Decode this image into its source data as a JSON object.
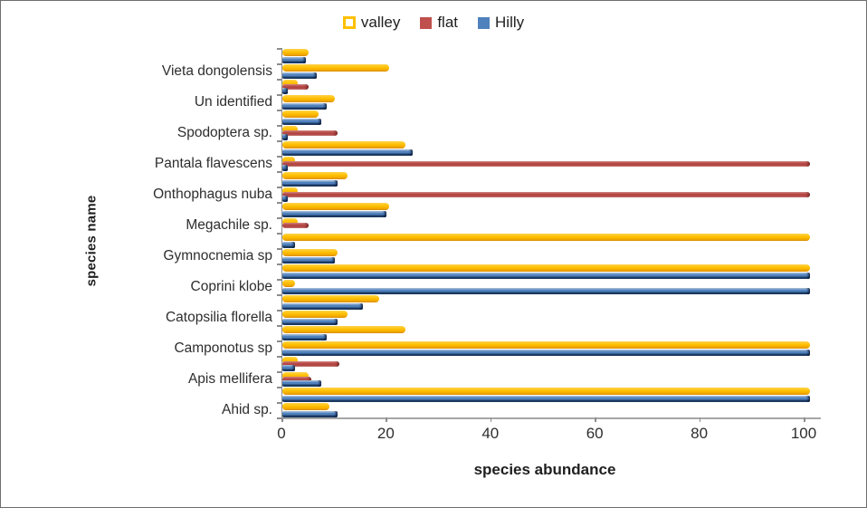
{
  "legend": {
    "items": [
      {
        "label": "valley",
        "color": "#FFC000",
        "marker": "hollow-square"
      },
      {
        "label": "flat",
        "color": "#C0504D",
        "marker": "square"
      },
      {
        "label": "Hilly",
        "color": "#4F81BD",
        "marker": "square"
      }
    ]
  },
  "axes": {
    "x_title": "species abundance",
    "y_title": "species name",
    "x_tick_labels": [
      "0",
      "20",
      "40",
      "60",
      "80",
      "100"
    ]
  },
  "chart_data": {
    "type": "bar",
    "orientation": "horizontal",
    "title": "",
    "xlabel": "species abundance",
    "ylabel": "species name",
    "xlim": [
      0,
      110
    ],
    "xticks": [
      0,
      20,
      40,
      60,
      80,
      100
    ],
    "gridlines": false,
    "legend_position": "top-center",
    "series_names": [
      "valley",
      "flat",
      "Hilly"
    ],
    "series_colors": {
      "valley": "#FFC000",
      "flat": "#C0504D",
      "Hilly": "#4F81BD"
    },
    "categories_labeled": [
      "Vieta dongolensis",
      "Un identified",
      "Spodoptera sp.",
      "Pantala flavescens",
      "Onthophagus nuba",
      "Megachile sp.",
      "Gymnocnemia sp",
      "Coprini klobe",
      "Catopsilia florella",
      "Camponotus sp",
      "Apis mellifera",
      "Ahid sp."
    ],
    "rows_order": "top-to-bottom",
    "rows": [
      {
        "label": "",
        "valley": 5,
        "flat": 0,
        "hilly": 4.5
      },
      {
        "label": "Vieta dongolensis",
        "valley": 20.5,
        "flat": 0,
        "hilly": 6.5
      },
      {
        "label": "",
        "valley": 3,
        "flat": 5,
        "hilly": 1
      },
      {
        "label": "Un identified",
        "valley": 10,
        "flat": 0,
        "hilly": 8.5
      },
      {
        "label": "",
        "valley": 7,
        "flat": 0,
        "hilly": 7.5
      },
      {
        "label": "Spodoptera sp.",
        "valley": 3,
        "flat": 10.5,
        "hilly": 1
      },
      {
        "label": "",
        "valley": 23.5,
        "flat": 0,
        "hilly": 25
      },
      {
        "label": "Pantala flavescens",
        "valley": 2.5,
        "flat": 101,
        "hilly": 1
      },
      {
        "label": "",
        "valley": 12.5,
        "flat": 0,
        "hilly": 10.5
      },
      {
        "label": "Onthophagus nuba",
        "valley": 3,
        "flat": 101,
        "hilly": 1
      },
      {
        "label": "",
        "valley": 20.5,
        "flat": 0,
        "hilly": 20
      },
      {
        "label": "Megachile sp.",
        "valley": 3,
        "flat": 5,
        "hilly": 0
      },
      {
        "label": "",
        "valley": 101,
        "flat": 0,
        "hilly": 2.5
      },
      {
        "label": "Gymnocnemia sp",
        "valley": 10.5,
        "flat": 0,
        "hilly": 10
      },
      {
        "label": "",
        "valley": 101,
        "flat": 0,
        "hilly": 101
      },
      {
        "label": "Coprini klobe",
        "valley": 2.5,
        "flat": 0,
        "hilly": 101
      },
      {
        "label": "",
        "valley": 18.5,
        "flat": 0,
        "hilly": 15.5
      },
      {
        "label": "Catopsilia florella",
        "valley": 12.5,
        "flat": 0,
        "hilly": 10.5
      },
      {
        "label": "",
        "valley": 23.5,
        "flat": 0,
        "hilly": 8.5
      },
      {
        "label": "Camponotus sp",
        "valley": 101,
        "flat": 0,
        "hilly": 101
      },
      {
        "label": "",
        "valley": 3,
        "flat": 11,
        "hilly": 2.5
      },
      {
        "label": "Apis mellifera",
        "valley": 5,
        "flat": 5.5,
        "hilly": 7.5
      },
      {
        "label": "",
        "valley": 101,
        "flat": 0,
        "hilly": 101
      },
      {
        "label": "Ahid sp.",
        "valley": 9,
        "flat": 0,
        "hilly": 10.5
      }
    ]
  }
}
